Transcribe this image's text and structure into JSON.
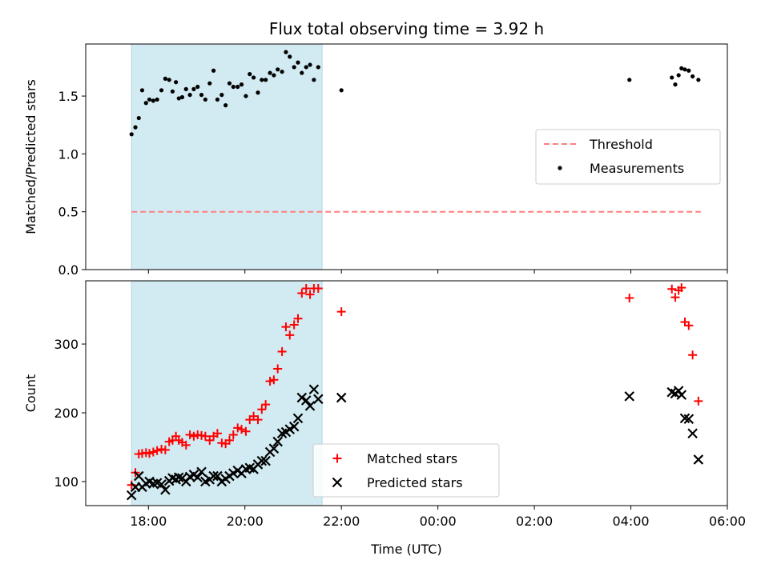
{
  "chart_data": [
    {
      "type": "scatter",
      "title": "Flux total observing time = 3.92 h",
      "xlabel": "",
      "ylabel": "Matched/Predicted stars",
      "x_unit": "hours since 00:00 UTC of the first day",
      "xlim": [
        -7.3,
        6.0
      ],
      "ylim": [
        0.0,
        1.95
      ],
      "yticks": [
        0.0,
        0.5,
        1.0,
        1.5
      ],
      "xticks": [
        -6,
        -4,
        -2,
        0,
        2,
        4,
        6
      ],
      "xtick_labels": [
        "18:00",
        "20:00",
        "22:00",
        "00:00",
        "02:00",
        "04:00",
        "06:00"
      ],
      "show_xtick_labels": false,
      "shaded_region": {
        "x": [
          -6.35,
          -2.4
        ],
        "color": "#add8e6"
      },
      "grid": false,
      "legend": {
        "position": "center-right",
        "entries": [
          "Threshold",
          "Measurements"
        ]
      },
      "series": [
        {
          "name": "Threshold",
          "kind": "dashed-line",
          "color": "#ff7f7f",
          "points": [
            [
              -6.35,
              0.5
            ],
            [
              5.45,
              0.5
            ]
          ]
        },
        {
          "name": "Measurements",
          "kind": "dot",
          "color": "#000000",
          "points": [
            [
              -6.35,
              1.17
            ],
            [
              -6.27,
              1.23
            ],
            [
              -6.2,
              1.31
            ],
            [
              -6.13,
              1.55
            ],
            [
              -6.05,
              1.44
            ],
            [
              -5.98,
              1.47
            ],
            [
              -5.9,
              1.46
            ],
            [
              -5.82,
              1.47
            ],
            [
              -5.73,
              1.55
            ],
            [
              -5.65,
              1.65
            ],
            [
              -5.57,
              1.64
            ],
            [
              -5.5,
              1.54
            ],
            [
              -5.43,
              1.62
            ],
            [
              -5.37,
              1.48
            ],
            [
              -5.3,
              1.49
            ],
            [
              -5.22,
              1.56
            ],
            [
              -5.14,
              1.51
            ],
            [
              -5.06,
              1.56
            ],
            [
              -4.98,
              1.58
            ],
            [
              -4.9,
              1.51
            ],
            [
              -4.82,
              1.47
            ],
            [
              -4.73,
              1.61
            ],
            [
              -4.65,
              1.72
            ],
            [
              -4.57,
              1.47
            ],
            [
              -4.48,
              1.51
            ],
            [
              -4.4,
              1.42
            ],
            [
              -4.32,
              1.61
            ],
            [
              -4.24,
              1.58
            ],
            [
              -4.15,
              1.58
            ],
            [
              -4.07,
              1.6
            ],
            [
              -3.98,
              1.5
            ],
            [
              -3.9,
              1.69
            ],
            [
              -3.82,
              1.66
            ],
            [
              -3.73,
              1.53
            ],
            [
              -3.65,
              1.64
            ],
            [
              -3.57,
              1.64
            ],
            [
              -3.48,
              1.7
            ],
            [
              -3.4,
              1.68
            ],
            [
              -3.32,
              1.73
            ],
            [
              -3.23,
              1.71
            ],
            [
              -3.15,
              1.88
            ],
            [
              -3.07,
              1.84
            ],
            [
              -2.98,
              1.75
            ],
            [
              -2.9,
              1.79
            ],
            [
              -2.82,
              1.7
            ],
            [
              -2.73,
              1.75
            ],
            [
              -2.65,
              1.77
            ],
            [
              -2.57,
              1.64
            ],
            [
              -2.48,
              1.75
            ],
            [
              -2.0,
              1.55
            ],
            [
              3.97,
              1.64
            ],
            [
              4.85,
              1.66
            ],
            [
              4.92,
              1.6
            ],
            [
              4.99,
              1.68
            ],
            [
              5.05,
              1.74
            ],
            [
              5.12,
              1.73
            ],
            [
              5.2,
              1.72
            ],
            [
              5.28,
              1.67
            ],
            [
              5.4,
              1.64
            ]
          ]
        }
      ]
    },
    {
      "type": "scatter",
      "title": "",
      "xlabel": "Time (UTC)",
      "ylabel": "Count",
      "x_unit": "hours since 00:00 UTC of the first day",
      "xlim": [
        -7.3,
        6.0
      ],
      "ylim": [
        65,
        392
      ],
      "yticks": [
        100,
        200,
        300
      ],
      "xticks": [
        -6,
        -4,
        -2,
        0,
        2,
        4,
        6
      ],
      "xtick_labels": [
        "18:00",
        "20:00",
        "22:00",
        "00:00",
        "02:00",
        "04:00",
        "06:00"
      ],
      "show_xtick_labels": true,
      "shaded_region": {
        "x": [
          -6.35,
          -2.4
        ],
        "color": "#add8e6"
      },
      "grid": false,
      "legend": {
        "position": "lower-center",
        "entries": [
          "Matched stars",
          "Predicted stars"
        ]
      },
      "series": [
        {
          "name": "Matched stars",
          "kind": "plus",
          "color": "#ff0000",
          "points": [
            [
              -6.35,
              95
            ],
            [
              -6.27,
              113
            ],
            [
              -6.2,
              140
            ],
            [
              -6.13,
              141
            ],
            [
              -6.05,
              142
            ],
            [
              -5.98,
              141
            ],
            [
              -5.9,
              143
            ],
            [
              -5.82,
              145
            ],
            [
              -5.73,
              147
            ],
            [
              -5.65,
              146
            ],
            [
              -5.57,
              158
            ],
            [
              -5.5,
              160
            ],
            [
              -5.43,
              166
            ],
            [
              -5.37,
              160
            ],
            [
              -5.3,
              157
            ],
            [
              -5.22,
              153
            ],
            [
              -5.14,
              168
            ],
            [
              -5.06,
              166
            ],
            [
              -4.98,
              168
            ],
            [
              -4.9,
              167
            ],
            [
              -4.82,
              166
            ],
            [
              -4.73,
              160
            ],
            [
              -4.65,
              166
            ],
            [
              -4.57,
              170
            ],
            [
              -4.48,
              156
            ],
            [
              -4.4,
              155
            ],
            [
              -4.32,
              160
            ],
            [
              -4.24,
              168
            ],
            [
              -4.15,
              178
            ],
            [
              -4.07,
              176
            ],
            [
              -3.98,
              173
            ],
            [
              -3.9,
              190
            ],
            [
              -3.82,
              195
            ],
            [
              -3.73,
              190
            ],
            [
              -3.65,
              205
            ],
            [
              -3.57,
              212
            ],
            [
              -3.48,
              246
            ],
            [
              -3.4,
              248
            ],
            [
              -3.32,
              264
            ],
            [
              -3.23,
              289
            ],
            [
              -3.15,
              325
            ],
            [
              -3.07,
              313
            ],
            [
              -2.98,
              328
            ],
            [
              -2.9,
              337
            ],
            [
              -2.82,
              374
            ],
            [
              -2.73,
              381
            ],
            [
              -2.65,
              372
            ],
            [
              -2.57,
              381
            ],
            [
              -2.48,
              381
            ],
            [
              -2.0,
              347
            ],
            [
              3.97,
              367
            ],
            [
              4.85,
              380
            ],
            [
              4.92,
              368
            ],
            [
              4.99,
              378
            ],
            [
              5.05,
              382
            ],
            [
              5.12,
              332
            ],
            [
              5.2,
              327
            ],
            [
              5.28,
              284
            ],
            [
              5.4,
              217
            ]
          ]
        },
        {
          "name": "Predicted stars",
          "kind": "x",
          "color": "#000000",
          "points": [
            [
              -6.35,
              80
            ],
            [
              -6.27,
              92
            ],
            [
              -6.2,
              108
            ],
            [
              -6.13,
              92
            ],
            [
              -6.05,
              97
            ],
            [
              -5.98,
              100
            ],
            [
              -5.9,
              97
            ],
            [
              -5.82,
              98
            ],
            [
              -5.73,
              96
            ],
            [
              -5.65,
              88
            ],
            [
              -5.57,
              101
            ],
            [
              -5.5,
              105
            ],
            [
              -5.43,
              103
            ],
            [
              -5.37,
              106
            ],
            [
              -5.3,
              105
            ],
            [
              -5.22,
              100
            ],
            [
              -5.14,
              107
            ],
            [
              -5.06,
              110
            ],
            [
              -4.98,
              106
            ],
            [
              -4.9,
              114
            ],
            [
              -4.82,
              100
            ],
            [
              -4.73,
              103
            ],
            [
              -4.65,
              108
            ],
            [
              -4.57,
              108
            ],
            [
              -4.48,
              100
            ],
            [
              -4.4,
              104
            ],
            [
              -4.32,
              108
            ],
            [
              -4.24,
              112
            ],
            [
              -4.15,
              116
            ],
            [
              -4.07,
              112
            ],
            [
              -3.98,
              118
            ],
            [
              -3.9,
              120
            ],
            [
              -3.82,
              118
            ],
            [
              -3.73,
              125
            ],
            [
              -3.65,
              130
            ],
            [
              -3.57,
              130
            ],
            [
              -3.48,
              143
            ],
            [
              -3.4,
              148
            ],
            [
              -3.32,
              158
            ],
            [
              -3.23,
              170
            ],
            [
              -3.15,
              172
            ],
            [
              -3.07,
              176
            ],
            [
              -2.98,
              180
            ],
            [
              -2.9,
              192
            ],
            [
              -2.82,
              222
            ],
            [
              -2.73,
              218
            ],
            [
              -2.65,
              210
            ],
            [
              -2.57,
              234
            ],
            [
              -2.48,
              220
            ],
            [
              -2.0,
              222
            ],
            [
              3.97,
              224
            ],
            [
              4.85,
              230
            ],
            [
              4.92,
              228
            ],
            [
              4.99,
              232
            ],
            [
              5.05,
              226
            ],
            [
              5.12,
              192
            ],
            [
              5.2,
              191
            ],
            [
              5.28,
              170
            ],
            [
              5.4,
              132
            ]
          ]
        }
      ]
    }
  ]
}
